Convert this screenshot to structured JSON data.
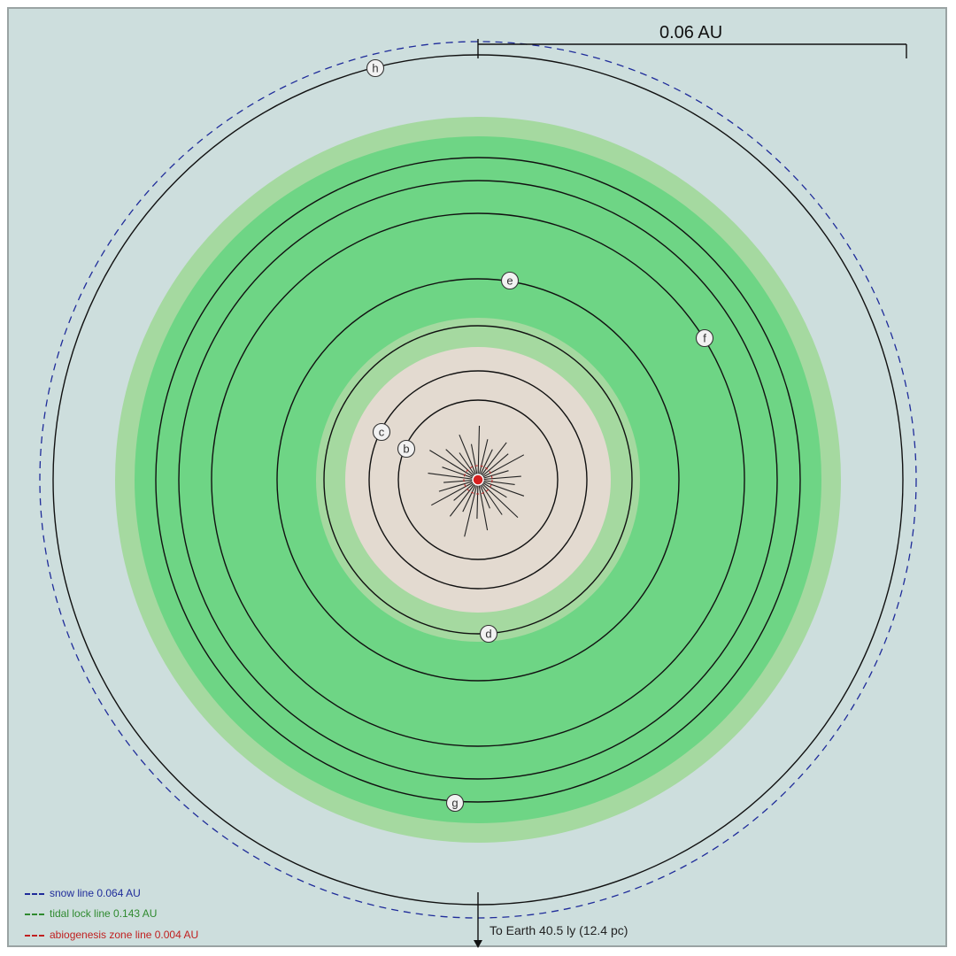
{
  "scale": {
    "label": "0.06 AU"
  },
  "legend": {
    "snow": "snow line 0.064 AU",
    "tidal": "tidal lock line 0.143 AU",
    "abiogenesis": "abiogenesis zone line 0.004 AU"
  },
  "earth_direction": "To Earth 40.5 ly (12.4 pc)",
  "colors": {
    "background": "#cddedd",
    "habitable_outer": "#a5d9a0",
    "habitable_inner": "#6ed585",
    "hot_zone": "#e3dad0",
    "snow_line": "#1f2c9a",
    "tidal_line": "#2f8a2f",
    "abiogenesis_line": "#c02020",
    "star": "#d62020"
  },
  "planets": [
    {
      "label": "b"
    },
    {
      "label": "c"
    },
    {
      "label": "d"
    },
    {
      "label": "e"
    },
    {
      "label": "f"
    },
    {
      "label": "g"
    },
    {
      "label": "h"
    }
  ]
}
